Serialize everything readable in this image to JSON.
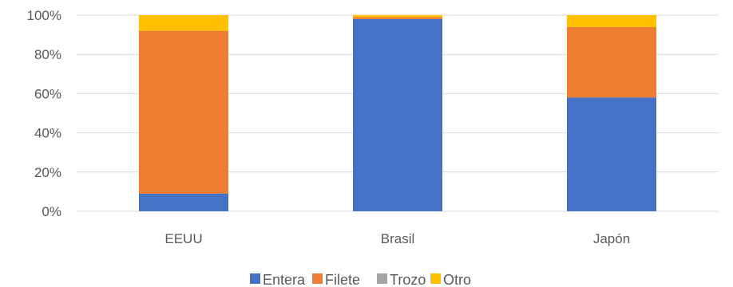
{
  "chart_data": {
    "type": "bar",
    "stacked": "percent",
    "categories": [
      "EEUU",
      "Brasil",
      "Japón"
    ],
    "series": [
      {
        "name": "Entera",
        "color": "#4472C4",
        "values": [
          9,
          98,
          58
        ]
      },
      {
        "name": "Filete",
        "color": "#ED7D31",
        "values": [
          83,
          1,
          36
        ]
      },
      {
        "name": "Trozo",
        "color": "#A5A5A5",
        "values": [
          0,
          0,
          0
        ]
      },
      {
        "name": "Otro",
        "color": "#FFC000",
        "values": [
          8,
          1,
          6
        ]
      }
    ],
    "ylim": [
      0,
      100
    ],
    "yticks": [
      0,
      20,
      40,
      60,
      80,
      100
    ],
    "ytick_labels": [
      "0%",
      "20%",
      "40%",
      "60%",
      "80%",
      "100%"
    ],
    "grid": true,
    "legend_position": "bottom",
    "title": "",
    "xlabel": "",
    "ylabel": ""
  }
}
